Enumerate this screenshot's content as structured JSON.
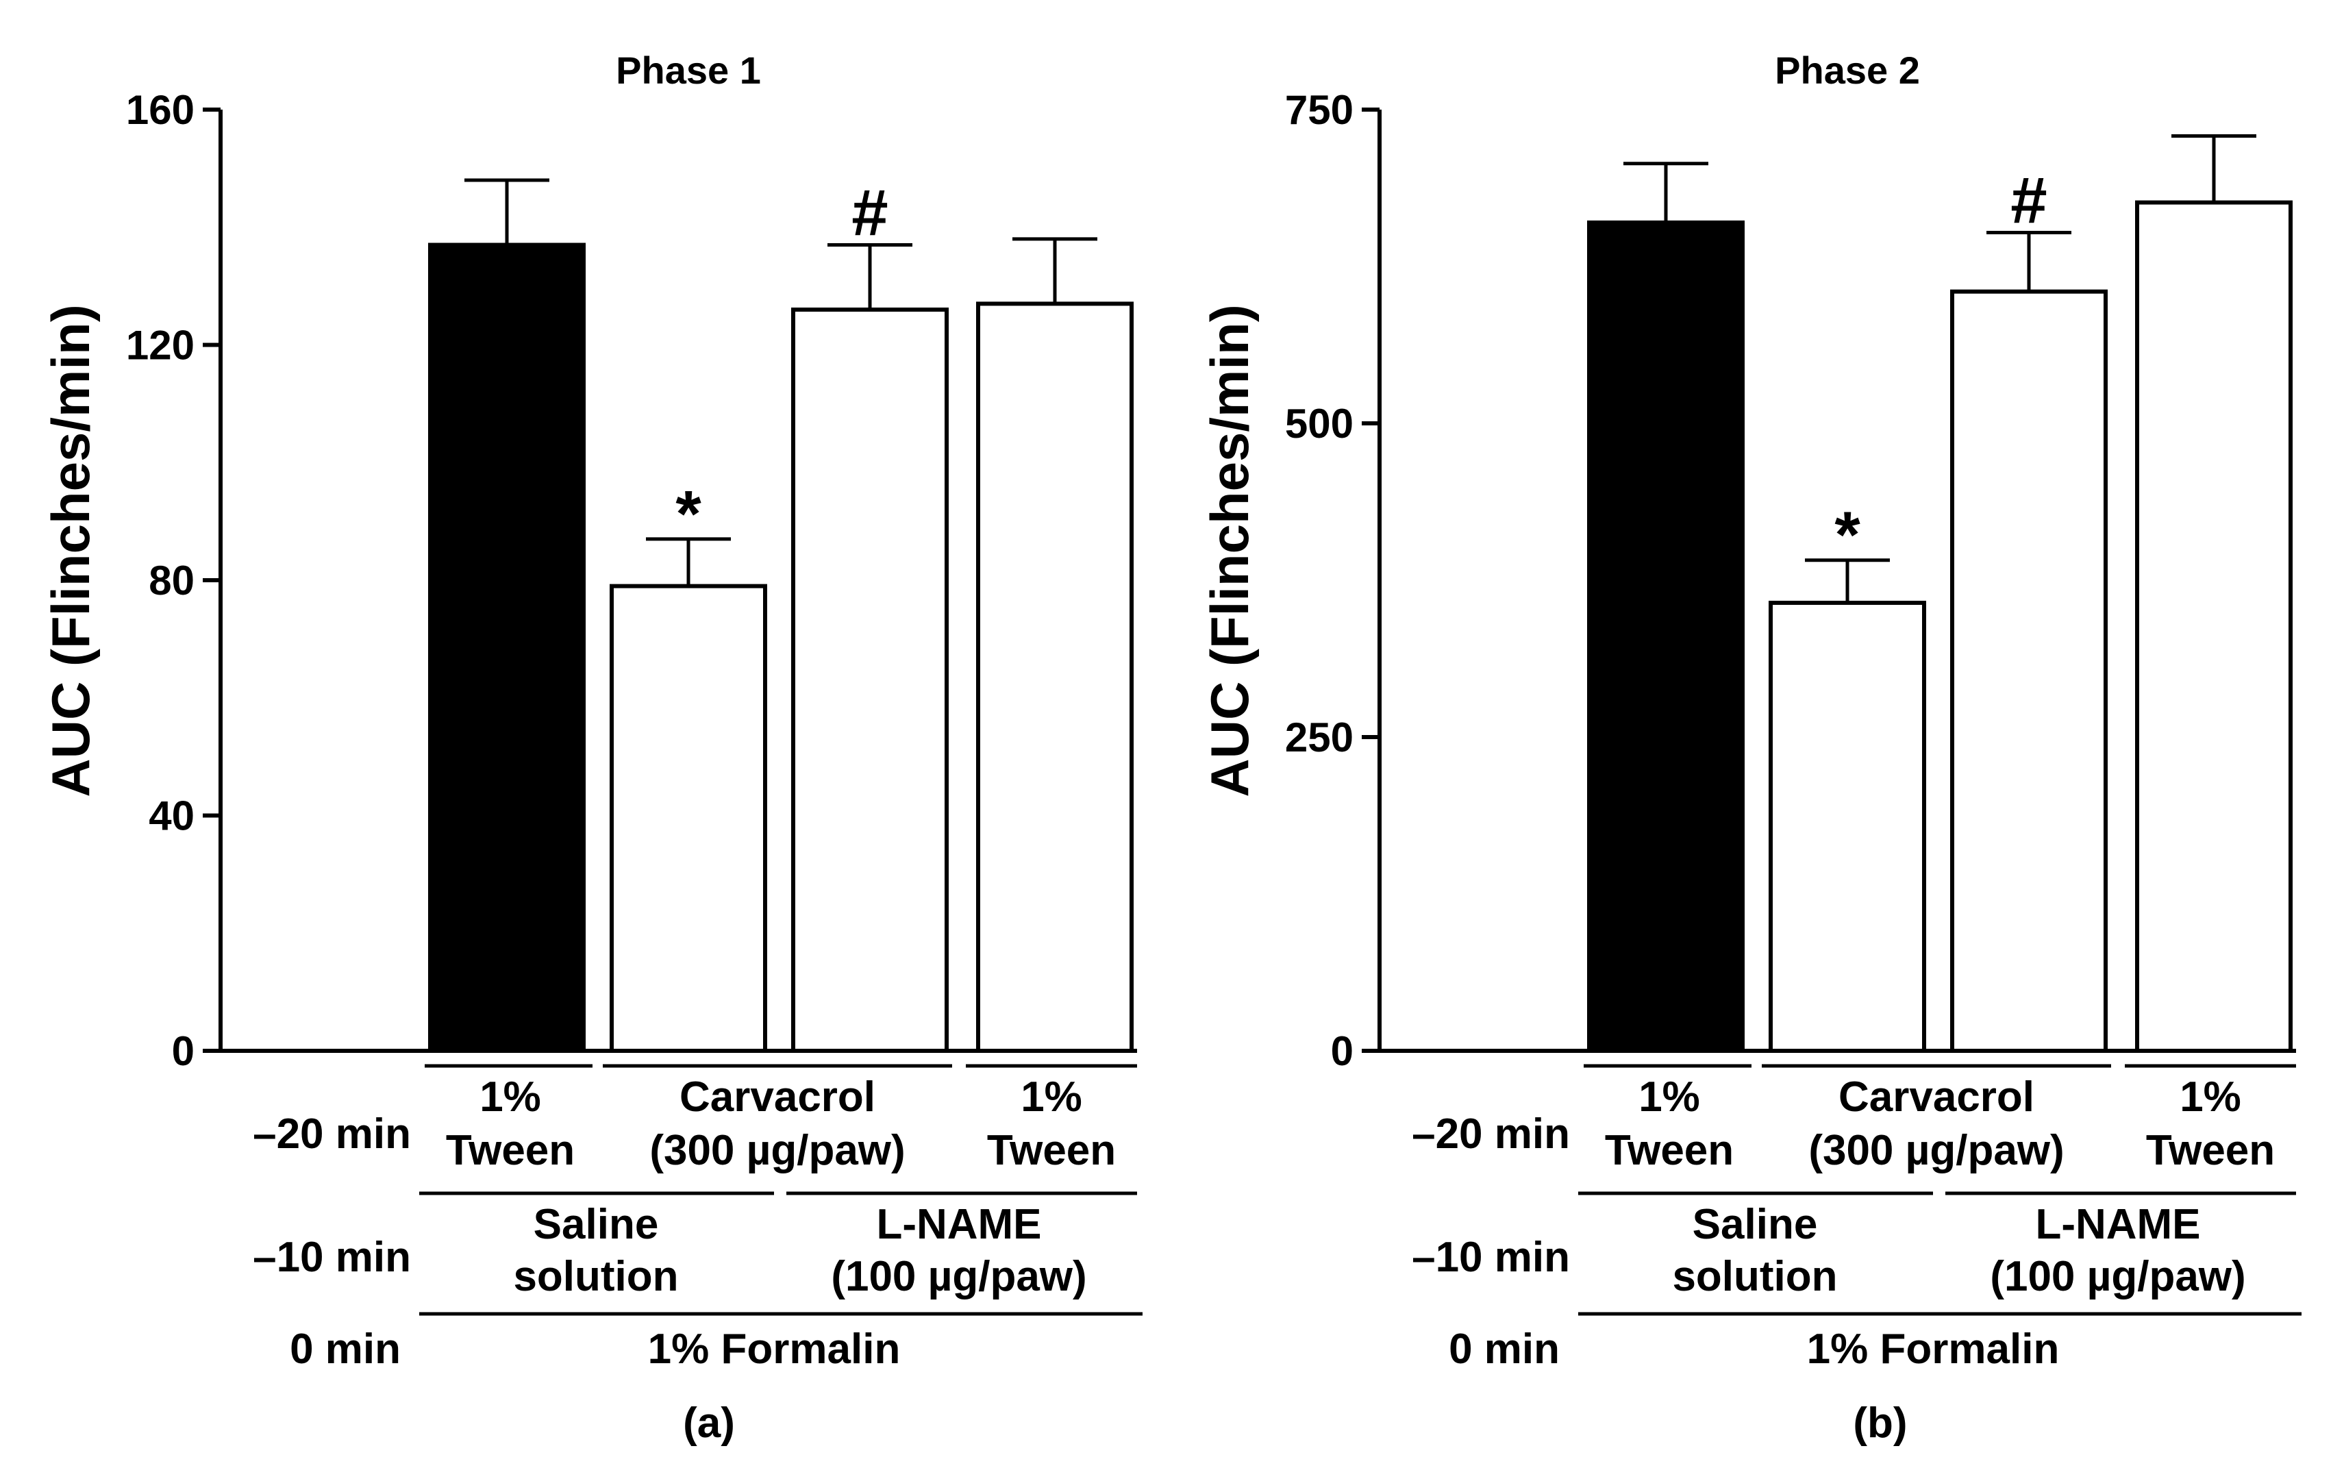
{
  "chart_data": [
    {
      "type": "bar",
      "title": "Phase 1",
      "panel_label": "(a)",
      "ylabel": "AUC (Flinches/min)",
      "ylim": [
        0,
        160
      ],
      "yticks": [
        "0",
        "40",
        "80",
        "120",
        "160"
      ],
      "categories": [
        "1% Tween + Saline solution",
        "Carvacrol (300 µg/paw) + Saline solution",
        "Carvacrol (300 µg/paw) + L-NAME (100 µg/paw)",
        "1% Tween + L-NAME (100 µg/paw)"
      ],
      "values": [
        137,
        79,
        126,
        127
      ],
      "errors": [
        11,
        8,
        11,
        11
      ],
      "fills": [
        "#000000",
        "#ffffff",
        "#ffffff",
        "#ffffff"
      ],
      "markers": [
        "",
        "*",
        "#",
        ""
      ]
    },
    {
      "type": "bar",
      "title": "Phase 2",
      "panel_label": "(b)",
      "ylabel": "AUC (Flinches/min)",
      "ylim": [
        0,
        750
      ],
      "yticks": [
        "0",
        "250",
        "500",
        "750"
      ],
      "categories": [
        "1% Tween + Saline solution",
        "Carvacrol (300 µg/paw) + Saline solution",
        "Carvacrol (300 µg/paw) + L-NAME (100 µg/paw)",
        "1% Tween + L-NAME (100 µg/paw)"
      ],
      "values": [
        660,
        357,
        605,
        676
      ],
      "errors": [
        47,
        34,
        47,
        53
      ],
      "fills": [
        "#000000",
        "#ffffff",
        "#ffffff",
        "#ffffff"
      ],
      "markers": [
        "",
        "*",
        "#",
        ""
      ]
    }
  ],
  "treatment_table": {
    "row_labels": [
      "–20 min",
      "–10 min",
      "0 min"
    ],
    "row1": [
      {
        "line1": "1%",
        "line2": "Tween"
      },
      {
        "line1": "Carvacrol",
        "line2": "(300 µg/paw)"
      },
      {
        "line1": "1%",
        "line2": "Tween"
      }
    ],
    "row2": [
      {
        "line1": "Saline",
        "line2": "solution"
      },
      {
        "line1": "L-NAME",
        "line2": "(100 µg/paw)"
      }
    ],
    "row3": "1% Formalin"
  }
}
